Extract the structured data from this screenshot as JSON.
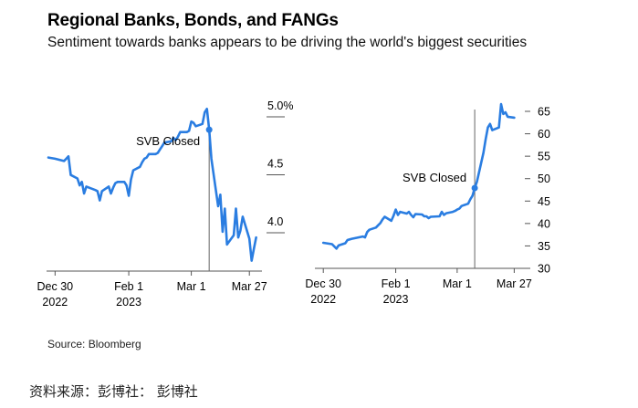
{
  "header": {
    "title": "Regional Banks, Bonds, and FANGs",
    "subtitle": "Sentiment towards banks appears to be driving the world's biggest securities"
  },
  "footer": {
    "source": "Source: Bloomberg",
    "caption": "资料来源：彭博社： 彭博社"
  },
  "colors": {
    "line": "#2a7de1",
    "axis": "#555555",
    "marker_line": "#666666",
    "text": "#000000"
  },
  "chart_data": [
    {
      "type": "line",
      "title": "",
      "xlabel": "",
      "ylabel": "",
      "x_ticks": [
        {
          "date": "2022-12-30",
          "label_top": "Dec 30",
          "label_bottom": "2022"
        },
        {
          "date": "2023-02-01",
          "label_top": "Feb 1",
          "label_bottom": "2023"
        },
        {
          "date": "2023-03-01",
          "label_top": "Mar 1",
          "label_bottom": ""
        },
        {
          "date": "2023-03-27",
          "label_top": "Mar 27",
          "label_bottom": ""
        }
      ],
      "xlim": [
        "2022-12-27",
        "2023-03-31"
      ],
      "y_ticks": [
        {
          "value": 4.0,
          "label": "4.0"
        },
        {
          "value": 4.5,
          "label": "4.5"
        },
        {
          "value": 5.0,
          "label": "5.0%"
        }
      ],
      "ylim": [
        3.6,
        5.1
      ],
      "annotation": {
        "label": "SVB Closed",
        "date": "2023-03-09",
        "value": 4.81
      },
      "grid": false,
      "series": [
        {
          "name": "",
          "points": [
            [
              "2022-12-27",
              4.57
            ],
            [
              "2022-12-30",
              4.56
            ],
            [
              "2023-01-03",
              4.54
            ],
            [
              "2023-01-04",
              4.56
            ],
            [
              "2023-01-05",
              4.58
            ],
            [
              "2023-01-06",
              4.42
            ],
            [
              "2023-01-09",
              4.39
            ],
            [
              "2023-01-10",
              4.33
            ],
            [
              "2023-01-11",
              4.36
            ],
            [
              "2023-01-12",
              4.26
            ],
            [
              "2023-01-13",
              4.32
            ],
            [
              "2023-01-17",
              4.29
            ],
            [
              "2023-01-18",
              4.28
            ],
            [
              "2023-01-19",
              4.2
            ],
            [
              "2023-01-20",
              4.28
            ],
            [
              "2023-01-23",
              4.32
            ],
            [
              "2023-01-24",
              4.26
            ],
            [
              "2023-01-25",
              4.31
            ],
            [
              "2023-01-26",
              4.35
            ],
            [
              "2023-01-27",
              4.36
            ],
            [
              "2023-01-30",
              4.36
            ],
            [
              "2023-01-31",
              4.33
            ],
            [
              "2023-02-01",
              4.24
            ],
            [
              "2023-02-02",
              4.38
            ],
            [
              "2023-02-03",
              4.46
            ],
            [
              "2023-02-06",
              4.49
            ],
            [
              "2023-02-07",
              4.53
            ],
            [
              "2023-02-08",
              4.56
            ],
            [
              "2023-02-09",
              4.57
            ],
            [
              "2023-02-10",
              4.6
            ],
            [
              "2023-02-13",
              4.6
            ],
            [
              "2023-02-14",
              4.61
            ],
            [
              "2023-02-15",
              4.64
            ],
            [
              "2023-02-16",
              4.67
            ],
            [
              "2023-02-17",
              4.7
            ],
            [
              "2023-02-20",
              4.71
            ],
            [
              "2023-02-21",
              4.74
            ],
            [
              "2023-02-22",
              4.72
            ],
            [
              "2023-02-23",
              4.75
            ],
            [
              "2023-02-24",
              4.79
            ],
            [
              "2023-02-27",
              4.79
            ],
            [
              "2023-02-28",
              4.8
            ],
            [
              "2023-03-01",
              4.88
            ],
            [
              "2023-03-02",
              4.87
            ],
            [
              "2023-03-03",
              4.84
            ],
            [
              "2023-03-06",
              4.86
            ],
            [
              "2023-03-07",
              4.96
            ],
            [
              "2023-03-08",
              4.99
            ],
            [
              "2023-03-09",
              4.81
            ],
            [
              "2023-03-10",
              4.56
            ],
            [
              "2023-03-13",
              4.15
            ],
            [
              "2023-03-14",
              4.25
            ],
            [
              "2023-03-15",
              3.93
            ],
            [
              "2023-03-16",
              4.13
            ],
            [
              "2023-03-17",
              3.82
            ],
            [
              "2023-03-20",
              3.9
            ],
            [
              "2023-03-21",
              4.13
            ],
            [
              "2023-03-22",
              3.88
            ],
            [
              "2023-03-23",
              3.94
            ],
            [
              "2023-03-24",
              4.06
            ],
            [
              "2023-03-27",
              3.87
            ],
            [
              "2023-03-28",
              3.68
            ],
            [
              "2023-03-29",
              3.78
            ],
            [
              "2023-03-30",
              3.88
            ]
          ]
        }
      ]
    },
    {
      "type": "line",
      "title": "",
      "xlabel": "",
      "ylabel": "",
      "x_ticks": [
        {
          "date": "2022-12-30",
          "label_top": "Dec 30",
          "label_bottom": "2022"
        },
        {
          "date": "2023-02-01",
          "label_top": "Feb 1",
          "label_bottom": "2023"
        },
        {
          "date": "2023-03-01",
          "label_top": "Mar 1",
          "label_bottom": ""
        },
        {
          "date": "2023-03-27",
          "label_top": "Mar 27",
          "label_bottom": ""
        }
      ],
      "xlim": [
        "2022-12-27",
        "2023-03-31"
      ],
      "y_ticks": [
        {
          "value": 30,
          "label": "30"
        },
        {
          "value": 35,
          "label": "35"
        },
        {
          "value": 40,
          "label": "40"
        },
        {
          "value": 45,
          "label": "45"
        },
        {
          "value": 50,
          "label": "50"
        },
        {
          "value": 55,
          "label": "55"
        },
        {
          "value": 60,
          "label": "60"
        },
        {
          "value": 65,
          "label": "65"
        }
      ],
      "ylim": [
        30,
        67
      ],
      "annotation": {
        "label": "SVB Closed",
        "date": "2023-03-09",
        "value": 47.9
      },
      "grid": false,
      "series": [
        {
          "name": "",
          "points": [
            [
              "2022-12-30",
              35.7
            ],
            [
              "2023-01-03",
              35.4
            ],
            [
              "2023-01-05",
              34.4
            ],
            [
              "2023-01-06",
              35.1
            ],
            [
              "2023-01-09",
              35.6
            ],
            [
              "2023-01-10",
              36.3
            ],
            [
              "2023-01-12",
              36.6
            ],
            [
              "2023-01-13",
              36.7
            ],
            [
              "2023-01-17",
              37.1
            ],
            [
              "2023-01-18",
              36.9
            ],
            [
              "2023-01-19",
              38.1
            ],
            [
              "2023-01-20",
              38.6
            ],
            [
              "2023-01-23",
              39.1
            ],
            [
              "2023-01-24",
              39.6
            ],
            [
              "2023-01-25",
              40.1
            ],
            [
              "2023-01-26",
              40.9
            ],
            [
              "2023-01-27",
              41.5
            ],
            [
              "2023-01-30",
              40.6
            ],
            [
              "2023-01-31",
              41.7
            ],
            [
              "2023-02-01",
              43.1
            ],
            [
              "2023-02-02",
              41.9
            ],
            [
              "2023-02-03",
              42.6
            ],
            [
              "2023-02-06",
              42.2
            ],
            [
              "2023-02-07",
              42.6
            ],
            [
              "2023-02-08",
              41.9
            ],
            [
              "2023-02-09",
              41.4
            ],
            [
              "2023-02-10",
              42.1
            ],
            [
              "2023-02-13",
              42.0
            ],
            [
              "2023-02-14",
              41.6
            ],
            [
              "2023-02-15",
              41.6
            ],
            [
              "2023-02-16",
              41.2
            ],
            [
              "2023-02-17",
              41.5
            ],
            [
              "2023-02-21",
              41.6
            ],
            [
              "2023-02-22",
              42.6
            ],
            [
              "2023-02-23",
              41.9
            ],
            [
              "2023-02-24",
              42.3
            ],
            [
              "2023-02-27",
              42.6
            ],
            [
              "2023-02-28",
              42.8
            ],
            [
              "2023-03-01",
              43.1
            ],
            [
              "2023-03-02",
              43.3
            ],
            [
              "2023-03-03",
              43.9
            ],
            [
              "2023-03-06",
              44.4
            ],
            [
              "2023-03-07",
              45.4
            ],
            [
              "2023-03-08",
              46.2
            ],
            [
              "2023-03-09",
              47.9
            ],
            [
              "2023-03-10",
              49.3
            ],
            [
              "2023-03-13",
              55.8
            ],
            [
              "2023-03-14",
              58.8
            ],
            [
              "2023-03-15",
              61.4
            ],
            [
              "2023-03-16",
              62.2
            ],
            [
              "2023-03-17",
              60.8
            ],
            [
              "2023-03-20",
              61.4
            ],
            [
              "2023-03-21",
              66.6
            ],
            [
              "2023-03-22",
              64.4
            ],
            [
              "2023-03-23",
              64.8
            ],
            [
              "2023-03-24",
              63.8
            ],
            [
              "2023-03-27",
              63.6
            ]
          ]
        }
      ]
    }
  ]
}
